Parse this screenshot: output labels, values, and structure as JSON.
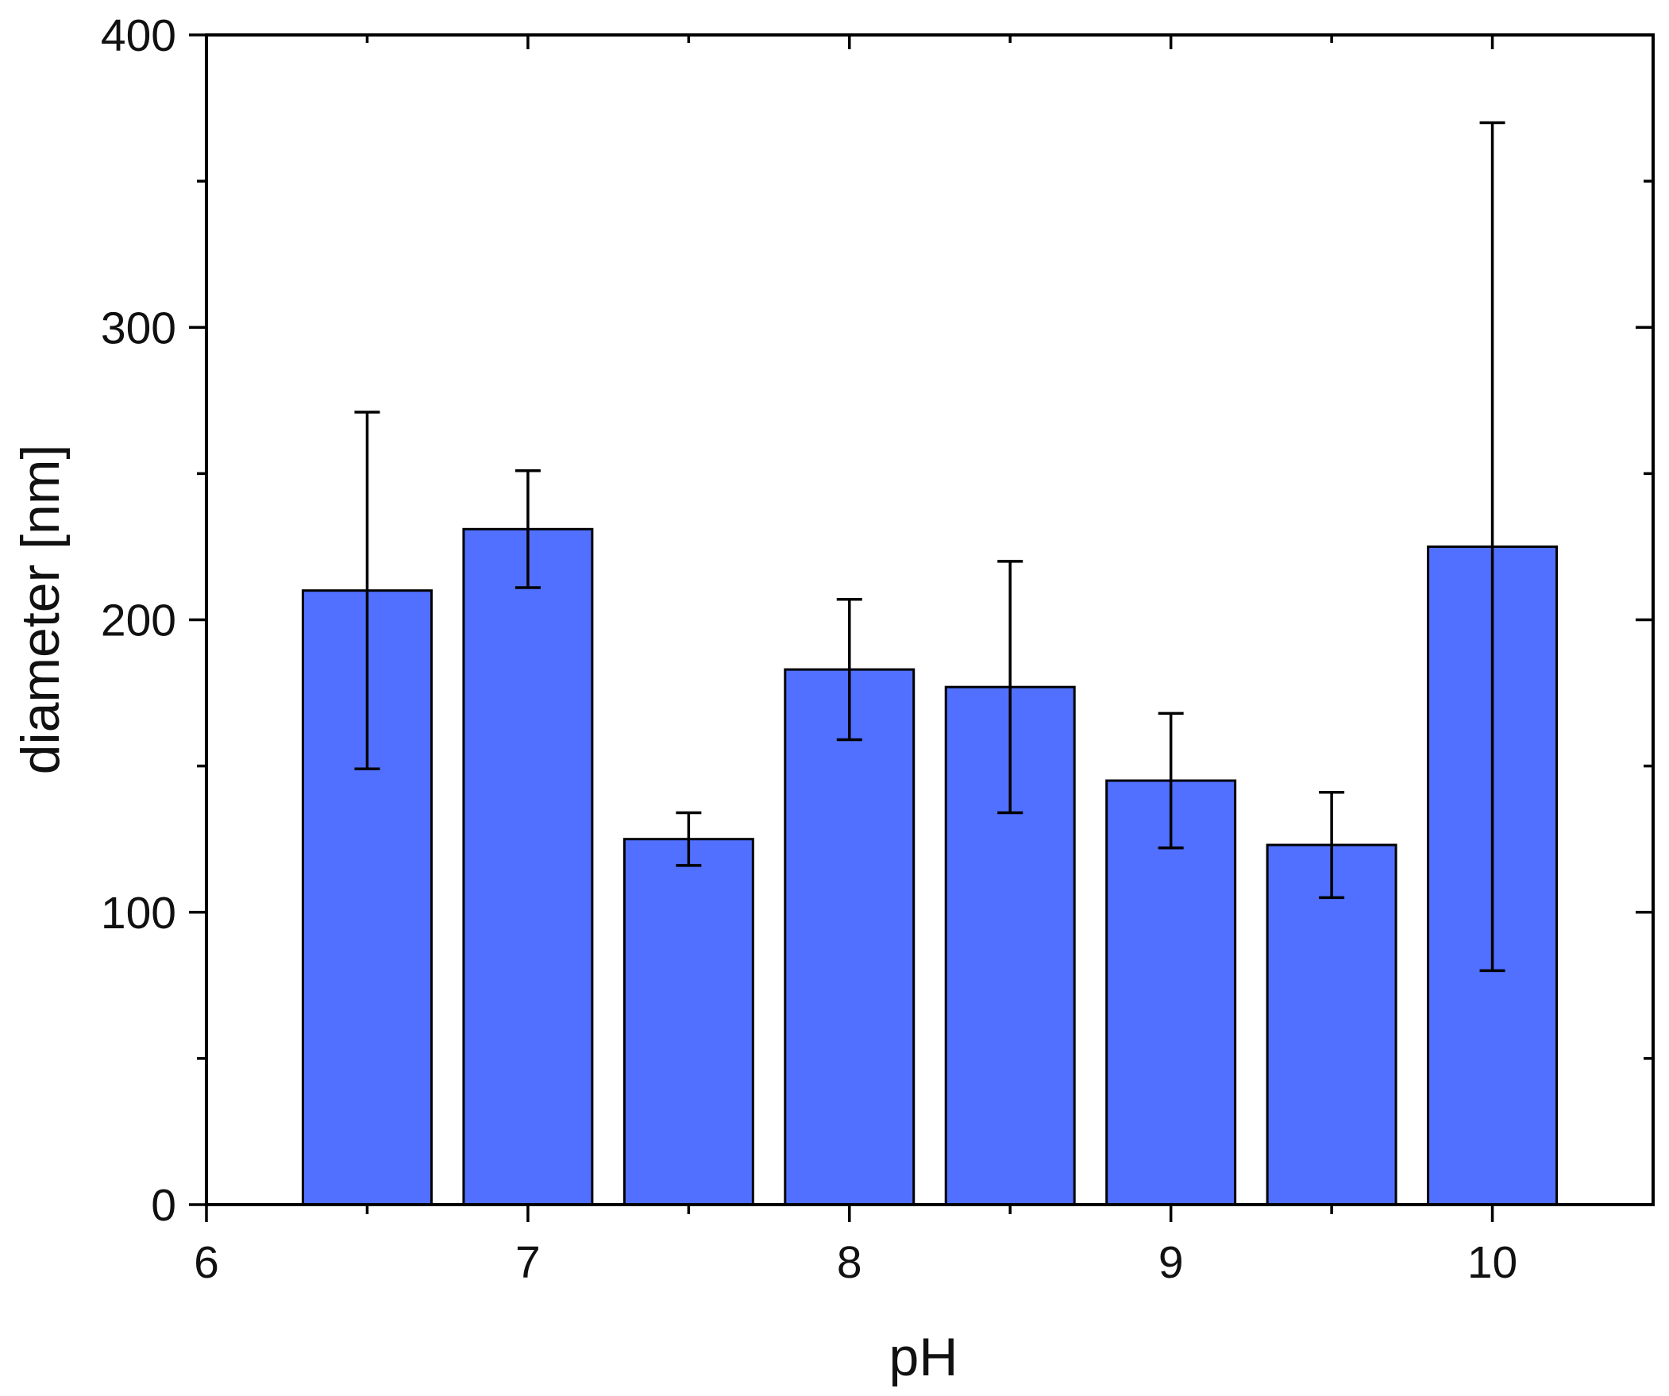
{
  "chart_data": {
    "type": "bar",
    "title": "",
    "xlabel": "pH",
    "ylabel": "diameter [nm]",
    "xlim": [
      6,
      10.5
    ],
    "ylim": [
      0,
      400
    ],
    "x_ticks": [
      6,
      7,
      8,
      9,
      10
    ],
    "x_tick_labels": [
      "6",
      "7",
      "8",
      "9",
      "10"
    ],
    "x_minor_ticks": [
      6.5,
      7.5,
      8.5,
      9.5
    ],
    "y_ticks": [
      0,
      100,
      200,
      300,
      400
    ],
    "y_tick_labels": [
      "0",
      "100",
      "200",
      "300",
      "400"
    ],
    "y_minor_ticks": [
      50,
      150,
      250,
      350
    ],
    "x": [
      6.5,
      7.0,
      7.5,
      8.0,
      8.5,
      9.0,
      9.5,
      10.0
    ],
    "values": [
      210,
      231,
      125,
      183,
      177,
      145,
      123,
      225
    ],
    "errors": [
      61,
      20,
      9,
      24,
      43,
      23,
      18,
      145
    ],
    "bar_width": 0.4,
    "bar_color": "#5170FF",
    "edge_color": "#000000",
    "grid": false,
    "legend": "none"
  }
}
